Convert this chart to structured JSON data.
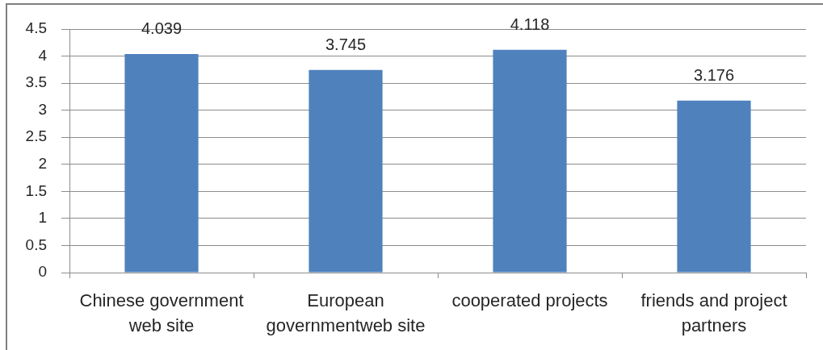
{
  "chart_data": {
    "type": "bar",
    "categories": [
      "Chinese government web site",
      "European governmentweb site",
      "cooperated projects",
      "friends and project partners"
    ],
    "values": [
      4.039,
      3.745,
      4.118,
      3.176
    ],
    "color": "#4f81bd",
    "ylim": [
      0,
      4.5
    ],
    "yticks": [
      0,
      0.5,
      1,
      1.5,
      2,
      2.5,
      3,
      3.5,
      4,
      4.5
    ],
    "grid": "y",
    "data_labels": true
  }
}
